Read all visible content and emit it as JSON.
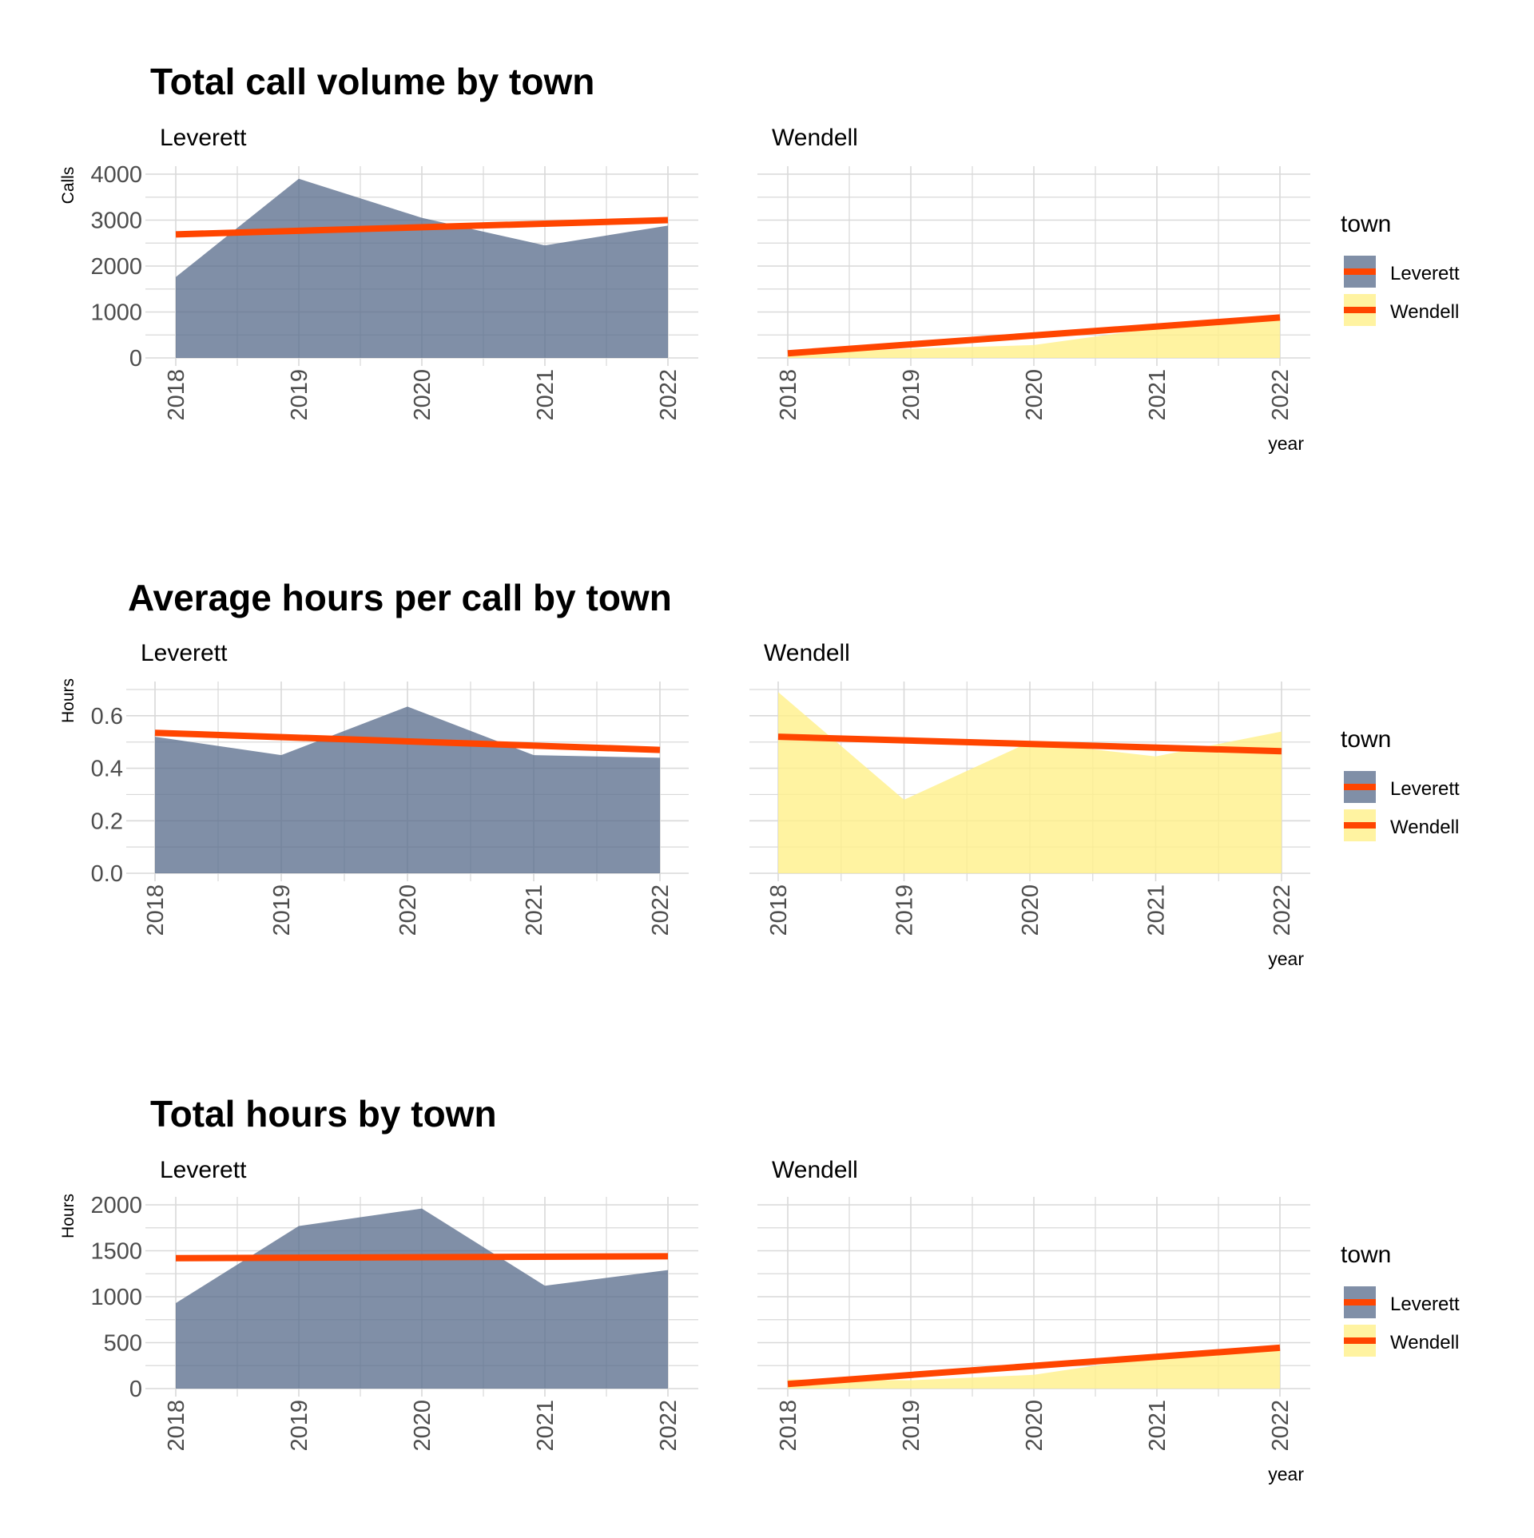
{
  "colors": {
    "Leverett": "#56698a",
    "Wendell": "#fff08a",
    "trend": "#ff4500",
    "grid": "#d9d9d9",
    "text": "#000000",
    "tick_text": "#4d4d4d"
  },
  "chart_data": [
    {
      "type": "area",
      "title": "Total call volume by town",
      "ylabel": "Calls",
      "xlabel": "year",
      "x": [
        2018,
        2019,
        2020,
        2021,
        2022
      ],
      "ylim": [
        0,
        4000
      ],
      "yticks": [
        "0",
        "1000",
        "2000",
        "3000",
        "4000"
      ],
      "ytick_values": [
        0,
        1000,
        2000,
        3000,
        4000
      ],
      "xticks": [
        "2018",
        "2019",
        "2020",
        "2021",
        "2022"
      ],
      "grid": true,
      "legend": {
        "title": "town",
        "entries": [
          "Leverett",
          "Wendell"
        ],
        "position": "right"
      },
      "panels": [
        {
          "name": "Leverett",
          "values": [
            1760,
            3900,
            3050,
            2450,
            2880
          ],
          "trend": [
            2690,
            3000
          ]
        },
        {
          "name": "Wendell",
          "values": [
            100,
            200,
            280,
            650,
            900
          ],
          "trend": [
            100,
            880
          ]
        }
      ]
    },
    {
      "type": "area",
      "title": "Average hours per call by town",
      "ylabel": "Hours",
      "xlabel": "year",
      "x": [
        2018,
        2019,
        2020,
        2021,
        2022
      ],
      "ylim": [
        0,
        0.7
      ],
      "yticks": [
        "0.0",
        "0.2",
        "0.4",
        "0.6"
      ],
      "ytick_values": [
        0,
        0.2,
        0.4,
        0.6
      ],
      "xticks": [
        "2018",
        "2019",
        "2020",
        "2021",
        "2022"
      ],
      "grid": true,
      "legend": {
        "title": "town",
        "entries": [
          "Leverett",
          "Wendell"
        ],
        "position": "right"
      },
      "panels": [
        {
          "name": "Leverett",
          "values": [
            0.52,
            0.45,
            0.635,
            0.45,
            0.44
          ],
          "trend": [
            0.535,
            0.47
          ]
        },
        {
          "name": "Wendell",
          "values": [
            0.69,
            0.28,
            0.5,
            0.445,
            0.54
          ],
          "trend": [
            0.52,
            0.465
          ]
        }
      ]
    },
    {
      "type": "area",
      "title": "Total hours by town",
      "ylabel": "Hours",
      "xlabel": "year",
      "x": [
        2018,
        2019,
        2020,
        2021,
        2022
      ],
      "ylim": [
        0,
        2000
      ],
      "yticks": [
        "0",
        "500",
        "1000",
        "1500",
        "2000"
      ],
      "ytick_values": [
        0,
        500,
        1000,
        1500,
        2000
      ],
      "xticks": [
        "2018",
        "2019",
        "2020",
        "2021",
        "2022"
      ],
      "grid": true,
      "legend": {
        "title": "town",
        "entries": [
          "Leverett",
          "Wendell"
        ],
        "position": "right"
      },
      "panels": [
        {
          "name": "Leverett",
          "values": [
            930,
            1770,
            1960,
            1120,
            1290
          ],
          "trend": [
            1420,
            1440
          ]
        },
        {
          "name": "Wendell",
          "values": [
            100,
            90,
            150,
            350,
            480
          ],
          "trend": [
            50,
            445
          ]
        }
      ]
    }
  ]
}
